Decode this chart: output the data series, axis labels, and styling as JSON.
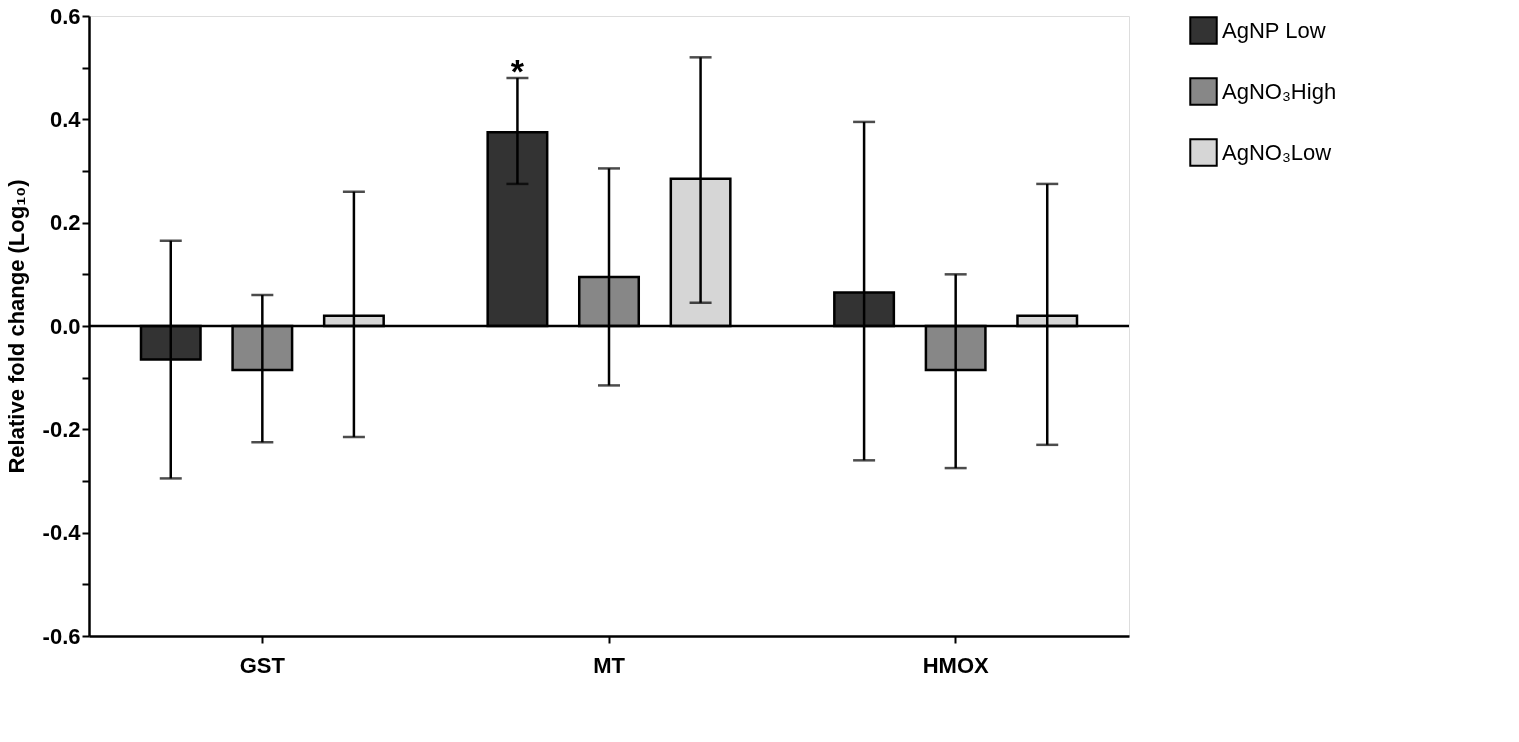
{
  "chart_data": {
    "type": "bar",
    "ylabel": "Relative fold change (Log₁₀)",
    "categories": [
      "GST",
      "MT",
      "HMOX"
    ],
    "series": [
      {
        "name": "AgNP Low",
        "color": "#333333",
        "values": [
          -0.065,
          0.375,
          0.065
        ],
        "errors": [
          [
            -0.295,
            0.165
          ],
          [
            0.275,
            0.48
          ],
          [
            -0.26,
            0.395
          ]
        ]
      },
      {
        "name": "AgNO₃High",
        "color": "#878787",
        "values": [
          -0.085,
          0.095,
          -0.085
        ],
        "errors": [
          [
            -0.225,
            0.06
          ],
          [
            -0.115,
            0.305
          ],
          [
            -0.275,
            0.1
          ]
        ]
      },
      {
        "name": "AgNO₃Low",
        "color": "#d6d6d6",
        "values": [
          0.02,
          0.285,
          0.02
        ],
        "errors": [
          [
            -0.215,
            0.26
          ],
          [
            0.045,
            0.52
          ],
          [
            -0.23,
            0.275
          ]
        ]
      }
    ],
    "ylim": [
      -0.6,
      0.6
    ],
    "yticks": [
      {
        "value": -0.6,
        "label": "-0.6"
      },
      {
        "value": -0.5,
        "label": null
      },
      {
        "value": -0.4,
        "label": "-0.4"
      },
      {
        "value": -0.3,
        "label": null
      },
      {
        "value": -0.2,
        "label": "-0.2"
      },
      {
        "value": -0.1,
        "label": null
      },
      {
        "value": 0,
        "label": "0.0"
      },
      {
        "value": 0.1,
        "label": null
      },
      {
        "value": 0.2,
        "label": "0.2"
      },
      {
        "value": 0.3,
        "label": null
      },
      {
        "value": 0.4,
        "label": "0.4"
      },
      {
        "value": 0.5,
        "label": null
      },
      {
        "value": 0.6,
        "label": "0.6"
      }
    ],
    "ref_lines": [
      {
        "axis": "y",
        "value": 0,
        "color": "#000000"
      }
    ],
    "annotations": [
      "*"
    ],
    "legend": "right",
    "grid": false
  }
}
